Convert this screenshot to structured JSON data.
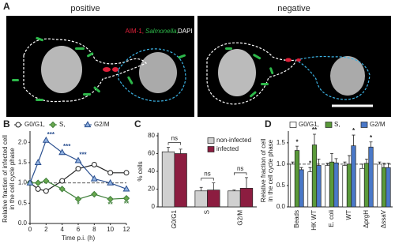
{
  "panel_a": {
    "label": "A",
    "left_title": "positive",
    "right_title": "negative",
    "stain_labels": [
      "AIM-1,",
      "Salmonella,",
      "DAPI"
    ]
  },
  "chart_data": [
    {
      "type": "line",
      "panel_label": "B",
      "x": [
        0,
        1,
        2,
        4,
        6,
        8,
        10,
        12
      ],
      "series": [
        {
          "name": "G0/G1,",
          "color": "#222222",
          "marker_fill": "#ffffff",
          "marker": "circle",
          "values": [
            1.0,
            0.85,
            0.8,
            1.05,
            1.35,
            1.45,
            1.25,
            1.25
          ],
          "significance": [
            null,
            null,
            null,
            null,
            null,
            null,
            null,
            null
          ]
        },
        {
          "name": "S,",
          "color": "#3f7f3a",
          "marker_fill": "#6aa84f",
          "marker": "diamond",
          "values": [
            1.0,
            1.0,
            1.05,
            0.85,
            0.6,
            0.72,
            0.6,
            0.62
          ],
          "significance": [
            null,
            null,
            null,
            null,
            "*",
            null,
            "**",
            "**"
          ]
        },
        {
          "name": "G2/M",
          "color": "#2a4f8f",
          "marker_fill": "#8fb0e0",
          "marker": "triangle",
          "values": [
            1.0,
            1.5,
            2.05,
            1.75,
            1.55,
            1.1,
            1.0,
            0.85
          ],
          "significance": [
            null,
            null,
            "***",
            "***",
            "***",
            null,
            null,
            null
          ]
        }
      ],
      "xlim": [
        0,
        12
      ],
      "xticks": [
        0,
        2,
        4,
        6,
        8,
        10,
        12
      ],
      "ylim": [
        0,
        2.2
      ],
      "yticks": [
        {
          "value": 0,
          "label": "0.0"
        },
        {
          "value": 0.5,
          "label": "0.5"
        },
        {
          "value": 1,
          "label": "1.0"
        },
        {
          "value": 1.5,
          "label": "1.5"
        },
        {
          "value": 2,
          "label": "2.0"
        }
      ],
      "refline": 1,
      "x_label": "Time p.i. (h)",
      "y_label": [
        "Relative fraction of infected cell",
        "in the cell cycle phase"
      ]
    },
    {
      "type": "bar",
      "panel_label": "C",
      "categories": [
        "G0/G1",
        "S",
        "G2/M"
      ],
      "series": [
        {
          "name": "non-infected",
          "color": "#d0d0d0",
          "values": [
            62,
            18,
            18
          ],
          "errors": [
            5,
            4,
            1
          ]
        },
        {
          "name": "infected",
          "color": "#8c1d40",
          "values": [
            60,
            19,
            21
          ],
          "errors": [
            5,
            8,
            12
          ]
        }
      ],
      "group_annotations": [
        "ns",
        "ns",
        "ns"
      ],
      "ylim": [
        0,
        80
      ],
      "yticks": [
        0,
        20,
        40,
        60,
        80
      ],
      "y_label": [
        "% cells"
      ],
      "legend": "top-right"
    },
    {
      "type": "bar",
      "panel_label": "D",
      "categories": [
        "Beads",
        "HK WT",
        "E. coli",
        "WT",
        "ΔprgH",
        "ΔssaV"
      ],
      "series": [
        {
          "name": "G0/G1,",
          "color": "#ffffff",
          "values": [
            1.0,
            0.82,
            0.97,
            0.97,
            0.9,
            1.0
          ],
          "errors": [
            0.05,
            0.1,
            0.05,
            0.08,
            0.1,
            0.05
          ],
          "significance": [
            null,
            "*",
            null,
            null,
            null,
            null
          ]
        },
        {
          "name": "S,",
          "color": "#5a9a3a",
          "values": [
            1.32,
            1.45,
            1.05,
            1.0,
            1.02,
            0.92
          ],
          "errors": [
            0.1,
            0.25,
            0.2,
            0.2,
            0.1,
            0.1
          ],
          "significance": [
            "*",
            "**",
            null,
            null,
            null,
            null
          ]
        },
        {
          "name": "G2/M",
          "color": "#4a78c8",
          "values": [
            0.87,
            0.97,
            1.03,
            1.43,
            1.4,
            0.92
          ],
          "errors": [
            0.05,
            0.15,
            0.1,
            0.25,
            0.12,
            0.1
          ],
          "significance": [
            null,
            null,
            null,
            "*",
            "*",
            null
          ]
        }
      ],
      "ylim": [
        0,
        1.7
      ],
      "yticks": [
        {
          "value": 0,
          "label": "0.0"
        },
        {
          "value": 0.5,
          "label": "0.5"
        },
        {
          "value": 1,
          "label": "1.0"
        },
        {
          "value": 1.5,
          "label": "1.5"
        }
      ],
      "refline": 1,
      "y_label": [
        "Relative fraction of cell",
        "in the cell cycle phase"
      ]
    }
  ]
}
